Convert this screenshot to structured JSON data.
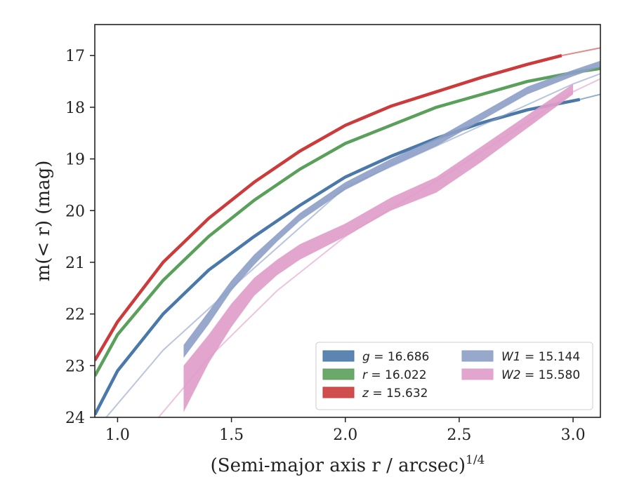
{
  "chart_data": {
    "type": "line",
    "xlabel": "(Semi-major axis r / arcsec)",
    "xlabel_exponent": "1/4",
    "ylabel": "m(< r) (mag)",
    "xlim": [
      0.9,
      3.12
    ],
    "ylim": [
      24.0,
      16.4
    ],
    "y_inverted": true,
    "xticks": [
      "1.0",
      "1.5",
      "2.0",
      "2.5",
      "3.0"
    ],
    "yticks": [
      "17",
      "18",
      "19",
      "20",
      "21",
      "22",
      "23",
      "24"
    ],
    "legend_position": "lower-right",
    "legend_columns": 2,
    "series": [
      {
        "name": "g = 16.686",
        "legend_var": "g",
        "legend_value": "= 16.686",
        "color": "#4a78a8",
        "kind": "curve",
        "x": [
          0.9,
          1.0,
          1.2,
          1.4,
          1.6,
          1.8,
          2.0,
          2.2,
          2.4,
          2.6,
          2.8,
          3.03
        ],
        "y": [
          23.95,
          23.1,
          22.0,
          21.15,
          20.5,
          19.9,
          19.35,
          18.95,
          18.6,
          18.3,
          18.05,
          17.85
        ],
        "model_x": [
          3.03,
          3.12
        ],
        "model_y": [
          17.85,
          17.75
        ]
      },
      {
        "name": "r = 16.022",
        "legend_var": "r",
        "legend_value": "= 16.022",
        "color": "#5aa05a",
        "kind": "curve",
        "x": [
          0.9,
          1.0,
          1.2,
          1.4,
          1.6,
          1.8,
          2.0,
          2.2,
          2.4,
          2.6,
          2.8,
          3.0,
          3.12
        ],
        "y": [
          23.2,
          22.4,
          21.35,
          20.5,
          19.8,
          19.2,
          18.7,
          18.35,
          18.0,
          17.75,
          17.5,
          17.33,
          17.25
        ],
        "model_x": [],
        "model_y": []
      },
      {
        "name": "z = 15.632",
        "legend_var": "z",
        "legend_value": "= 15.632",
        "color": "#cc3b3b",
        "kind": "curve",
        "x": [
          0.9,
          1.0,
          1.2,
          1.4,
          1.6,
          1.8,
          2.0,
          2.2,
          2.4,
          2.6,
          2.8,
          2.95
        ],
        "y": [
          22.9,
          22.15,
          21.0,
          20.15,
          19.45,
          18.85,
          18.35,
          17.98,
          17.7,
          17.42,
          17.17,
          17.0
        ],
        "model_x": [
          2.95,
          3.12
        ],
        "model_y": [
          17.0,
          16.85
        ]
      },
      {
        "name": "W1 = 15.144",
        "legend_var": "W1",
        "legend_value": "= 15.144",
        "color": "#8c9fc6",
        "kind": "band",
        "x": [
          1.29,
          1.4,
          1.5,
          1.6,
          1.7,
          1.8,
          2.0,
          2.2,
          2.4,
          2.6,
          2.8,
          3.0,
          3.12
        ],
        "y_low": [
          22.85,
          22.2,
          21.55,
          21.05,
          20.6,
          20.2,
          19.6,
          19.15,
          18.75,
          18.25,
          17.75,
          17.4,
          17.22
        ],
        "y_high": [
          22.6,
          21.95,
          21.35,
          20.85,
          20.45,
          20.05,
          19.45,
          19.0,
          18.6,
          18.1,
          17.6,
          17.28,
          17.1
        ],
        "model_x": [
          0.95,
          1.2,
          1.5,
          2.0,
          2.5,
          3.0,
          3.12
        ],
        "model_y": [
          24.0,
          22.7,
          21.5,
          19.55,
          18.55,
          17.55,
          17.35
        ]
      },
      {
        "name": "W2 = 15.580",
        "legend_var": "W2",
        "legend_value": "= 15.580",
        "color": "#df9cc9",
        "kind": "band",
        "x": [
          1.29,
          1.4,
          1.5,
          1.6,
          1.7,
          1.8,
          2.0,
          2.2,
          2.4,
          2.6,
          2.8,
          3.0
        ],
        "y_low": [
          23.9,
          22.95,
          22.25,
          21.65,
          21.25,
          20.95,
          20.5,
          20.0,
          19.65,
          19.05,
          18.4,
          17.75
        ],
        "y_high": [
          23.0,
          22.4,
          21.8,
          21.3,
          20.95,
          20.65,
          20.25,
          19.75,
          19.35,
          18.75,
          18.15,
          17.55
        ],
        "model_x": [
          1.18,
          1.4,
          1.7,
          2.0,
          2.5,
          3.0,
          3.12
        ],
        "model_y": [
          24.0,
          22.85,
          21.55,
          20.5,
          19.15,
          17.7,
          17.45
        ]
      }
    ]
  }
}
